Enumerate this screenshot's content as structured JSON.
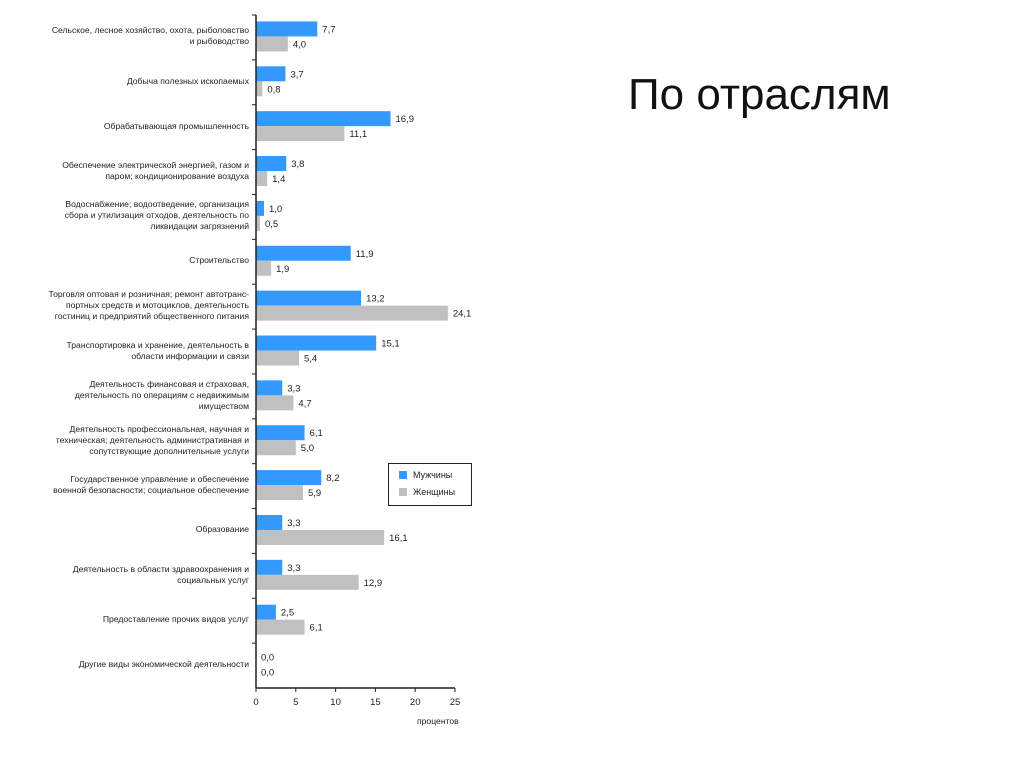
{
  "slide": {
    "title": "По отраслям"
  },
  "chart_data": {
    "type": "bar",
    "orientation": "horizontal",
    "categories": [
      "Сельское, лесное хозяйство, охота, рыболовство\nи рыбоводство",
      "Добыча полезных ископаемых",
      "Обрабатывающая промышленность",
      "Обеспечение электрической энергией, газом и\nпаром; кондиционирование воздуха",
      "Водоснабжение; водоотведение, организация\nсбора и утилизация отходов, деятельность по\nликвидации загрязнений",
      "Строительство",
      "Торговля оптовая и розничная; ремонт автотранс-\nпортных средств и  мотоциклов, деятельность\nгостиниц и предприятий общественного питания",
      "Транспортировка и хранение, деятельность в\nобласти информации и связи",
      "Деятельность финансовая и страховая,\nдеятельность по операциям с недвижимым\nимуществом",
      "Деятельность профессиональная, научная и\nтехническая; деятельность административная и\nсопутствующие дополнительные услуги",
      "Государственное управление и обеспечение\nвоенной безопасности; социальное обеспечение",
      "Образование",
      "Деятельность в области здравоохранения и\nсоциальных услуг",
      "Предоставление прочих видов услуг",
      "Другие виды экономической деятельности"
    ],
    "series": [
      {
        "name": "Мужчины",
        "color": "#3399ff",
        "values": [
          7.7,
          3.7,
          16.9,
          3.8,
          1.0,
          11.9,
          13.2,
          15.1,
          3.3,
          6.1,
          8.2,
          3.3,
          3.3,
          2.5,
          0.0
        ],
        "labels": [
          "7,7",
          "3,7",
          "16,9",
          "3,8",
          "1,0",
          "11,9",
          "13,2",
          "15,1",
          "3,3",
          "6,1",
          "8,2",
          "3,3",
          "3,3",
          "2,5",
          "0,0"
        ]
      },
      {
        "name": "Женщины",
        "color": "#c0c0c0",
        "values": [
          4.0,
          0.8,
          11.1,
          1.4,
          0.5,
          1.9,
          24.1,
          5.4,
          4.7,
          5.0,
          5.9,
          16.1,
          12.9,
          6.1,
          0.0
        ],
        "labels": [
          "4,0",
          "0,8",
          "11,1",
          "1,4",
          "0,5",
          "1,9",
          "24,1",
          "5,4",
          "4,7",
          "5,0",
          "5,9",
          "16,1",
          "12,9",
          "6,1",
          "0,0"
        ]
      }
    ],
    "xlim": [
      0,
      25
    ],
    "xticks": [
      "0",
      "5",
      "10",
      "15",
      "20",
      "25"
    ],
    "xlabel": "процентов",
    "grid": false,
    "legend_position": "right-middle"
  }
}
